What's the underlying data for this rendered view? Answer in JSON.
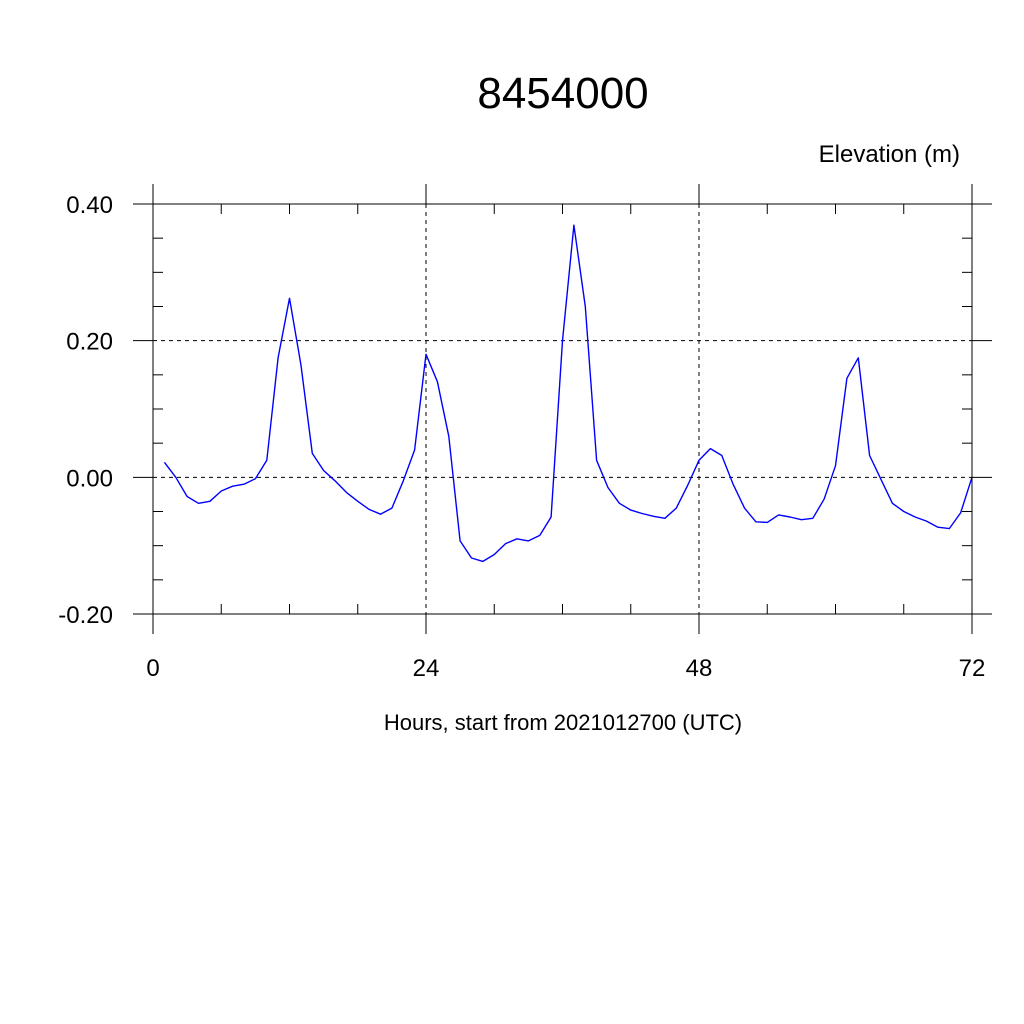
{
  "chart_data": {
    "type": "line",
    "title": "8454000",
    "ylabel": "Elevation (m)",
    "xlabel": "Hours, start from 2021012700 (UTC)",
    "xlim": [
      0,
      72
    ],
    "ylim": [
      -0.2,
      0.4
    ],
    "x_ticks": [
      0,
      24,
      48,
      72
    ],
    "x_tick_labels": [
      "0",
      "24",
      "48",
      "72"
    ],
    "y_ticks": [
      -0.2,
      0.0,
      0.2,
      0.4
    ],
    "y_tick_labels": [
      "-0.20",
      "0.00",
      "0.20",
      "0.40"
    ],
    "grid": true,
    "line_color": "#0000ff",
    "series": [
      {
        "x": [
          1,
          2,
          3,
          4,
          5,
          6,
          7,
          8,
          9,
          10,
          11,
          12,
          13,
          14,
          15,
          16,
          17,
          18,
          19,
          20,
          21,
          22,
          23,
          24,
          25,
          26,
          27,
          28,
          29,
          30,
          31,
          32,
          33,
          34,
          35,
          36,
          37,
          38,
          39,
          40,
          41,
          42,
          43,
          44,
          45,
          46,
          47,
          48,
          49,
          50,
          51,
          52,
          53,
          54,
          55,
          56,
          57,
          58,
          59,
          60,
          61,
          62,
          63,
          64,
          65,
          66,
          67,
          68,
          69,
          70,
          71,
          72
        ],
        "values": [
          0.022,
          0.0,
          -0.028,
          -0.038,
          -0.035,
          -0.02,
          -0.013,
          -0.01,
          -0.002,
          0.025,
          0.175,
          0.262,
          0.165,
          0.035,
          0.01,
          -0.005,
          -0.022,
          -0.035,
          -0.047,
          -0.054,
          -0.045,
          -0.005,
          0.04,
          0.18,
          0.14,
          0.06,
          -0.093,
          -0.118,
          -0.123,
          -0.113,
          -0.097,
          -0.09,
          -0.093,
          -0.085,
          -0.058,
          0.2,
          0.369,
          0.25,
          0.025,
          -0.015,
          -0.038,
          -0.048,
          -0.053,
          -0.057,
          -0.06,
          -0.045,
          -0.012,
          0.025,
          0.042,
          0.032,
          -0.01,
          -0.045,
          -0.065,
          -0.066,
          -0.055,
          -0.058,
          -0.062,
          -0.06,
          -0.032,
          0.017,
          0.145,
          0.175,
          0.032,
          -0.003,
          -0.038,
          -0.05,
          -0.058,
          -0.064,
          -0.073,
          -0.075,
          -0.052,
          0.0
        ]
      }
    ]
  }
}
